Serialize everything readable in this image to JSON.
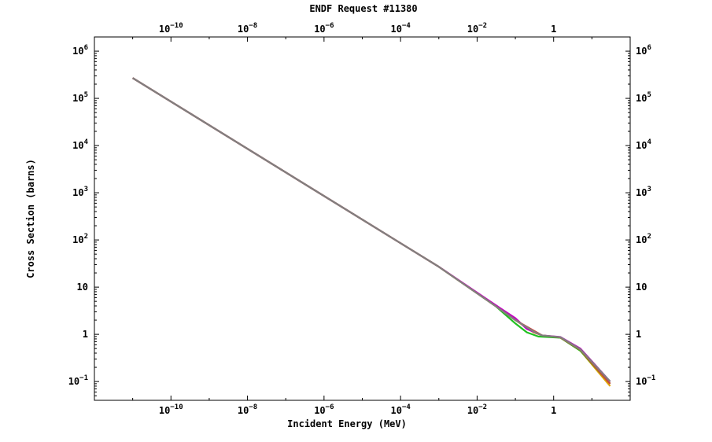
{
  "chart_data": {
    "type": "line",
    "title": "ENDF Request #11380",
    "xlabel": "Incident Energy (MeV)",
    "ylabel": "Cross Section (barns)",
    "x_scale": "log",
    "y_scale": "log",
    "xlim": [
      1e-12,
      100
    ],
    "ylim": [
      0.04,
      2000000
    ],
    "grid": false,
    "x_ticks": [
      {
        "value": 1e-10,
        "base": "10",
        "exp": "−10"
      },
      {
        "value": 1e-08,
        "base": "10",
        "exp": "−8"
      },
      {
        "value": 1e-06,
        "base": "10",
        "exp": "−6"
      },
      {
        "value": 0.0001,
        "base": "10",
        "exp": "−4"
      },
      {
        "value": 0.01,
        "base": "10",
        "exp": "−2"
      },
      {
        "value": 1,
        "base": "1",
        "exp": ""
      }
    ],
    "y_ticks": [
      {
        "value": 0.1,
        "base": "10",
        "exp": "−1"
      },
      {
        "value": 1,
        "base": "1",
        "exp": ""
      },
      {
        "value": 10,
        "base": "10",
        "exp": ""
      },
      {
        "value": 100,
        "base": "10",
        "exp": "2"
      },
      {
        "value": 1000,
        "base": "10",
        "exp": "3"
      },
      {
        "value": 10000,
        "base": "10",
        "exp": "4"
      },
      {
        "value": 100000,
        "base": "10",
        "exp": "5"
      },
      {
        "value": 1000000,
        "base": "10",
        "exp": "6"
      }
    ],
    "series": [
      {
        "color": "#e0a000",
        "x": [
          1e-11,
          1e-09,
          1e-07,
          1e-05,
          0.001,
          0.03,
          0.1,
          0.3,
          0.5,
          1.5,
          5,
          30
        ],
        "y": [
          270000,
          27000,
          2700,
          270,
          27,
          4,
          2,
          1.1,
          0.95,
          0.85,
          0.45,
          0.08
        ]
      },
      {
        "color": "#20c020",
        "x": [
          1e-11,
          1e-09,
          1e-07,
          1e-05,
          0.001,
          0.03,
          0.1,
          0.2,
          0.4,
          1.5,
          5,
          30
        ],
        "y": [
          270000,
          27000,
          2700,
          270,
          27,
          4,
          1.7,
          1.1,
          0.9,
          0.85,
          0.45,
          0.09
        ]
      },
      {
        "color": "#c000c0",
        "x": [
          1e-11,
          1e-09,
          1e-07,
          1e-05,
          0.001,
          0.03,
          0.1,
          0.2,
          0.5,
          1.5,
          5,
          30
        ],
        "y": [
          270000,
          27000,
          2700,
          270,
          27,
          4.2,
          2.2,
          1.3,
          0.95,
          0.88,
          0.5,
          0.1
        ]
      },
      {
        "color": "#d04040",
        "x": [
          1e-11,
          1e-09,
          1e-07,
          1e-05,
          0.001,
          0.03,
          0.1,
          0.3,
          0.5,
          1.5,
          5,
          30
        ],
        "y": [
          270000,
          27000,
          2700,
          270,
          27,
          4,
          2,
          1.2,
          0.95,
          0.86,
          0.47,
          0.09
        ]
      },
      {
        "color": "#808080",
        "x": [
          1e-11,
          1e-09,
          1e-07,
          1e-05,
          0.001,
          0.03,
          0.1,
          0.3,
          0.5,
          1.5,
          5,
          30
        ],
        "y": [
          270000,
          27000,
          2700,
          270,
          27,
          4,
          2,
          1.15,
          0.95,
          0.87,
          0.48,
          0.1
        ]
      }
    ]
  }
}
